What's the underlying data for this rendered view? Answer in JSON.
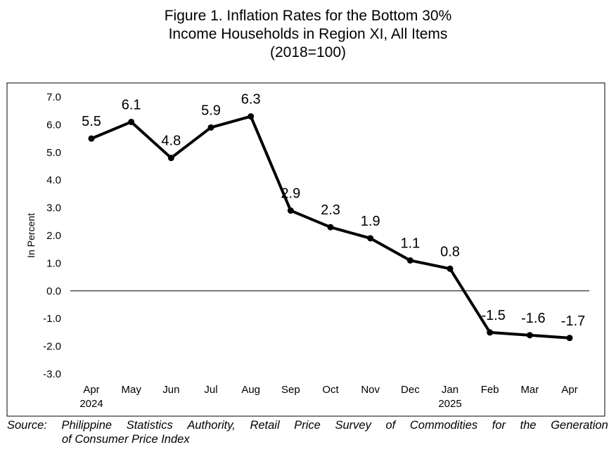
{
  "title_lines": [
    "Figure 1. Inflation Rates for the Bottom 30%",
    "Income Households in Region XI, All Items",
    "(2018=100)"
  ],
  "chart_data": {
    "type": "line",
    "title": "Figure 1. Inflation Rates for the Bottom 30% Income Households in Region XI, All Items (2018=100)",
    "ylabel": "In Percent",
    "xlabel": "",
    "categories": [
      "Apr",
      "May",
      "Jun",
      "Jul",
      "Aug",
      "Sep",
      "Oct",
      "Nov",
      "Dec",
      "Jan",
      "Feb",
      "Mar",
      "Apr"
    ],
    "category_years": [
      "2024",
      "",
      "",
      "",
      "",
      "",
      "",
      "",
      "",
      "2025",
      "",
      "",
      ""
    ],
    "values": [
      5.5,
      6.1,
      4.8,
      5.9,
      6.3,
      2.9,
      2.3,
      1.9,
      1.1,
      0.8,
      -1.5,
      -1.6,
      -1.7
    ],
    "data_labels": [
      "5.5",
      "6.1",
      "4.8",
      "5.9",
      "6.3",
      "2.9",
      "2.3",
      "1.9",
      "1.1",
      "0.8",
      "-1.5",
      "-1.6",
      "-1.7"
    ],
    "ylim": [
      -3.0,
      7.0
    ],
    "yticks": [
      7.0,
      6.0,
      5.0,
      4.0,
      3.0,
      2.0,
      1.0,
      0.0,
      -1.0,
      -2.0,
      -3.0
    ],
    "ytick_labels": [
      "7.0",
      "6.0",
      "5.0",
      "4.0",
      "3.0",
      "2.0",
      "1.0",
      "0.0",
      "-1.0",
      "-2.0",
      "-3.0"
    ],
    "grid": false,
    "legend": "none",
    "line_color": "#000000"
  },
  "source": {
    "line1_words": [
      "Source:",
      "Philippine",
      "Statistics",
      "Authority,",
      "Retail",
      "Price",
      "Survey",
      "of",
      "Commodities",
      "for",
      "the",
      "Generation"
    ],
    "line2": "of Consumer Price Index"
  }
}
